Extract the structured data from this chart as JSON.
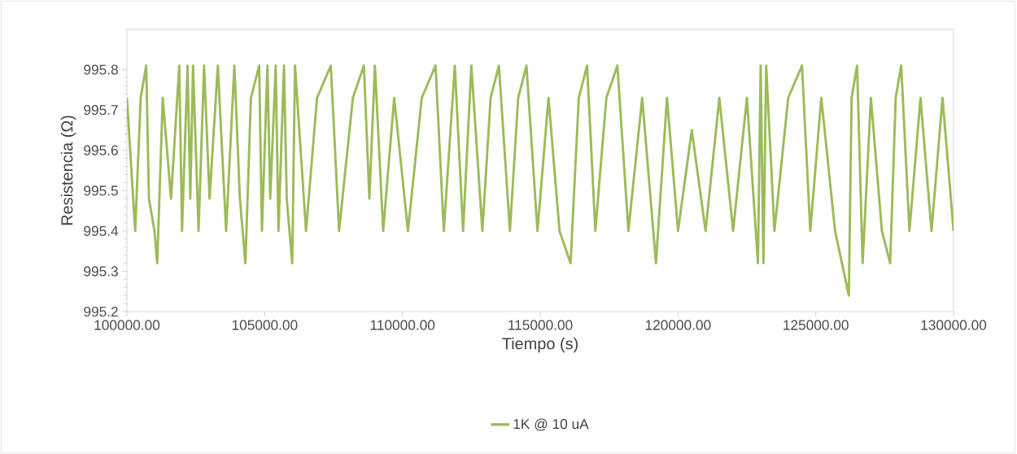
{
  "chart_data": {
    "type": "line",
    "xlabel": "Tiempo (s)",
    "ylabel": "Resistencia (Ω)",
    "xlim": [
      100000,
      130000
    ],
    "ylim": [
      995.2,
      995.9
    ],
    "xticks": [
      {
        "value": 100000,
        "label": "100000.00"
      },
      {
        "value": 105000,
        "label": "105000.00"
      },
      {
        "value": 110000,
        "label": "110000.00"
      },
      {
        "value": 115000,
        "label": "115000.00"
      },
      {
        "value": 120000,
        "label": "120000.00"
      },
      {
        "value": 125000,
        "label": "125000.00"
      },
      {
        "value": 130000,
        "label": "130000.00"
      }
    ],
    "yticks": [
      995.2,
      995.3,
      995.4,
      995.5,
      995.6,
      995.7,
      995.8
    ],
    "legend": "bottom",
    "marker": "none",
    "line_style": "solid",
    "x": [
      100000,
      100300,
      100500,
      100700,
      100800,
      101000,
      101100,
      101300,
      101600,
      101900,
      102000,
      102200,
      102300,
      102400,
      102600,
      102800,
      103000,
      103300,
      103600,
      103900,
      104100,
      104300,
      104500,
      104800,
      104900,
      105100,
      105200,
      105400,
      105500,
      105700,
      105800,
      106000,
      106100,
      106500,
      106900,
      107400,
      107700,
      108200,
      108600,
      108800,
      109000,
      109300,
      109700,
      110200,
      110700,
      111200,
      111500,
      111900,
      112200,
      112500,
      112900,
      113200,
      113500,
      113900,
      114200,
      114500,
      114900,
      115300,
      115700,
      116100,
      116400,
      116700,
      117000,
      117400,
      117800,
      118200,
      118700,
      119200,
      119600,
      120000,
      120500,
      121000,
      121500,
      122000,
      122500,
      122900,
      123000,
      123100,
      123200,
      123500,
      124000,
      124500,
      124800,
      125200,
      125700,
      126200,
      126300,
      126500,
      126700,
      127000,
      127400,
      127700,
      127900,
      128100,
      128400,
      128800,
      129200,
      129600,
      130000
    ],
    "series": [
      {
        "name": "1K @ 10 uA",
        "color": "#9bbb59",
        "values": [
          995.73,
          995.4,
          995.73,
          995.81,
          995.48,
          995.4,
          995.32,
          995.73,
          995.48,
          995.81,
          995.4,
          995.81,
          995.48,
          995.81,
          995.4,
          995.81,
          995.48,
          995.81,
          995.4,
          995.81,
          995.48,
          995.32,
          995.73,
          995.81,
          995.4,
          995.81,
          995.48,
          995.81,
          995.4,
          995.81,
          995.48,
          995.32,
          995.81,
          995.4,
          995.73,
          995.81,
          995.4,
          995.73,
          995.81,
          995.48,
          995.81,
          995.4,
          995.73,
          995.4,
          995.73,
          995.81,
          995.4,
          995.81,
          995.4,
          995.81,
          995.4,
          995.73,
          995.81,
          995.4,
          995.73,
          995.81,
          995.4,
          995.73,
          995.4,
          995.32,
          995.73,
          995.81,
          995.4,
          995.73,
          995.81,
          995.4,
          995.73,
          995.32,
          995.73,
          995.4,
          995.65,
          995.4,
          995.73,
          995.4,
          995.73,
          995.32,
          995.81,
          995.32,
          995.81,
          995.4,
          995.73,
          995.81,
          995.4,
          995.73,
          995.4,
          995.24,
          995.73,
          995.81,
          995.32,
          995.73,
          995.4,
          995.32,
          995.73,
          995.81,
          995.4,
          995.73,
          995.4,
          995.73,
          995.4
        ]
      }
    ]
  }
}
